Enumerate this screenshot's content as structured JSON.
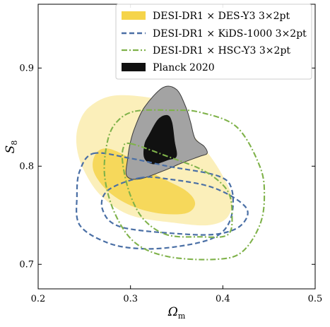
{
  "chart_data": {
    "type": "contour",
    "title": "",
    "xlabel": "Ωm",
    "ylabel": "S8",
    "xlim": [
      0.2,
      0.5
    ],
    "ylim": [
      0.675,
      0.965
    ],
    "xticks": [
      0.2,
      0.3,
      0.4,
      0.5
    ],
    "yticks": [
      0.7,
      0.8,
      0.9
    ],
    "grid": false,
    "legend_position": "top-right",
    "series": [
      {
        "name": "DESI-DR1 × DES-Y3 3×2pt",
        "style": "filled",
        "color": "#f5d44a",
        "contours": [
          {
            "level": "95%",
            "points": [
              [
                0.283,
                0.872
              ],
              [
                0.33,
                0.868
              ],
              [
                0.35,
                0.855
              ],
              [
                0.365,
                0.835
              ],
              [
                0.385,
                0.812
              ],
              [
                0.4,
                0.79
              ],
              [
                0.41,
                0.768
              ],
              [
                0.405,
                0.748
              ],
              [
                0.385,
                0.74
              ],
              [
                0.35,
                0.742
              ],
              [
                0.3,
                0.75
              ],
              [
                0.268,
                0.77
              ],
              [
                0.25,
                0.795
              ],
              [
                0.242,
                0.818
              ],
              [
                0.243,
                0.84
              ],
              [
                0.255,
                0.86
              ]
            ]
          },
          {
            "level": "68%",
            "points": [
              [
                0.275,
                0.818
              ],
              [
                0.3,
                0.808
              ],
              [
                0.33,
                0.79
              ],
              [
                0.36,
                0.775
              ],
              [
                0.37,
                0.762
              ],
              [
                0.36,
                0.752
              ],
              [
                0.33,
                0.752
              ],
              [
                0.3,
                0.76
              ],
              [
                0.275,
                0.775
              ],
              [
                0.26,
                0.795
              ],
              [
                0.262,
                0.812
              ]
            ]
          }
        ]
      },
      {
        "name": "DESI-DR1 × KiDS-1000 3×2pt",
        "style": "dashed",
        "color": "#4a6fa5",
        "contours": [
          {
            "level": "95%",
            "points": [
              [
                0.26,
                0.813
              ],
              [
                0.3,
                0.808
              ],
              [
                0.34,
                0.8
              ],
              [
                0.395,
                0.79
              ],
              [
                0.41,
                0.775
              ],
              [
                0.408,
                0.745
              ],
              [
                0.39,
                0.727
              ],
              [
                0.35,
                0.718
              ],
              [
                0.31,
                0.716
              ],
              [
                0.275,
                0.722
              ],
              [
                0.245,
                0.74
              ],
              [
                0.242,
                0.77
              ],
              [
                0.245,
                0.795
              ]
            ]
          },
          {
            "level": "68%",
            "points": [
              [
                0.31,
                0.788
              ],
              [
                0.34,
                0.787
              ],
              [
                0.39,
                0.778
              ],
              [
                0.425,
                0.758
              ],
              [
                0.42,
                0.74
              ],
              [
                0.395,
                0.731
              ],
              [
                0.355,
                0.731
              ],
              [
                0.29,
                0.738
              ],
              [
                0.27,
                0.755
              ],
              [
                0.275,
                0.775
              ]
            ]
          }
        ]
      },
      {
        "name": "DESI-DR1 × HSC-Y3 3×2pt",
        "style": "dashdot",
        "color": "#7fb24a",
        "contours": [
          {
            "level": "95%",
            "points": [
              [
                0.305,
                0.856
              ],
              [
                0.345,
                0.857
              ],
              [
                0.375,
                0.855
              ],
              [
                0.415,
                0.84
              ],
              [
                0.44,
                0.8
              ],
              [
                0.445,
                0.77
              ],
              [
                0.44,
                0.74
              ],
              [
                0.42,
                0.712
              ],
              [
                0.39,
                0.705
              ],
              [
                0.34,
                0.708
              ],
              [
                0.305,
                0.722
              ],
              [
                0.283,
                0.752
              ],
              [
                0.272,
                0.79
              ],
              [
                0.275,
                0.825
              ],
              [
                0.285,
                0.845
              ]
            ]
          },
          {
            "level": "68%",
            "points": [
              [
                0.3,
                0.823
              ],
              [
                0.34,
                0.81
              ],
              [
                0.38,
                0.795
              ],
              [
                0.405,
                0.775
              ],
              [
                0.41,
                0.75
              ],
              [
                0.405,
                0.73
              ],
              [
                0.375,
                0.728
              ],
              [
                0.34,
                0.73
              ],
              [
                0.315,
                0.745
              ],
              [
                0.3,
                0.77
              ],
              [
                0.292,
                0.8
              ],
              [
                0.292,
                0.818
              ]
            ]
          }
        ]
      },
      {
        "name": "Planck 2020",
        "style": "filled",
        "color": "#111111",
        "fill_95": "#a3a3a3",
        "contours": [
          {
            "level": "95%",
            "points": [
              [
                0.305,
                0.84
              ],
              [
                0.315,
                0.86
              ],
              [
                0.335,
                0.88
              ],
              [
                0.35,
                0.878
              ],
              [
                0.36,
                0.86
              ],
              [
                0.365,
                0.845
              ],
              [
                0.37,
                0.828
              ],
              [
                0.38,
                0.82
              ],
              [
                0.383,
                0.813
              ],
              [
                0.375,
                0.81
              ],
              [
                0.355,
                0.803
              ],
              [
                0.335,
                0.795
              ],
              [
                0.31,
                0.787
              ],
              [
                0.296,
                0.79
              ],
              [
                0.297,
                0.808
              ],
              [
                0.3,
                0.825
              ]
            ]
          },
          {
            "level": "68%",
            "points": [
              [
                0.32,
                0.832
              ],
              [
                0.33,
                0.848
              ],
              [
                0.34,
                0.852
              ],
              [
                0.345,
                0.845
              ],
              [
                0.348,
                0.825
              ],
              [
                0.35,
                0.81
              ],
              [
                0.34,
                0.806
              ],
              [
                0.325,
                0.802
              ],
              [
                0.315,
                0.808
              ],
              [
                0.315,
                0.822
              ]
            ]
          }
        ]
      }
    ]
  }
}
